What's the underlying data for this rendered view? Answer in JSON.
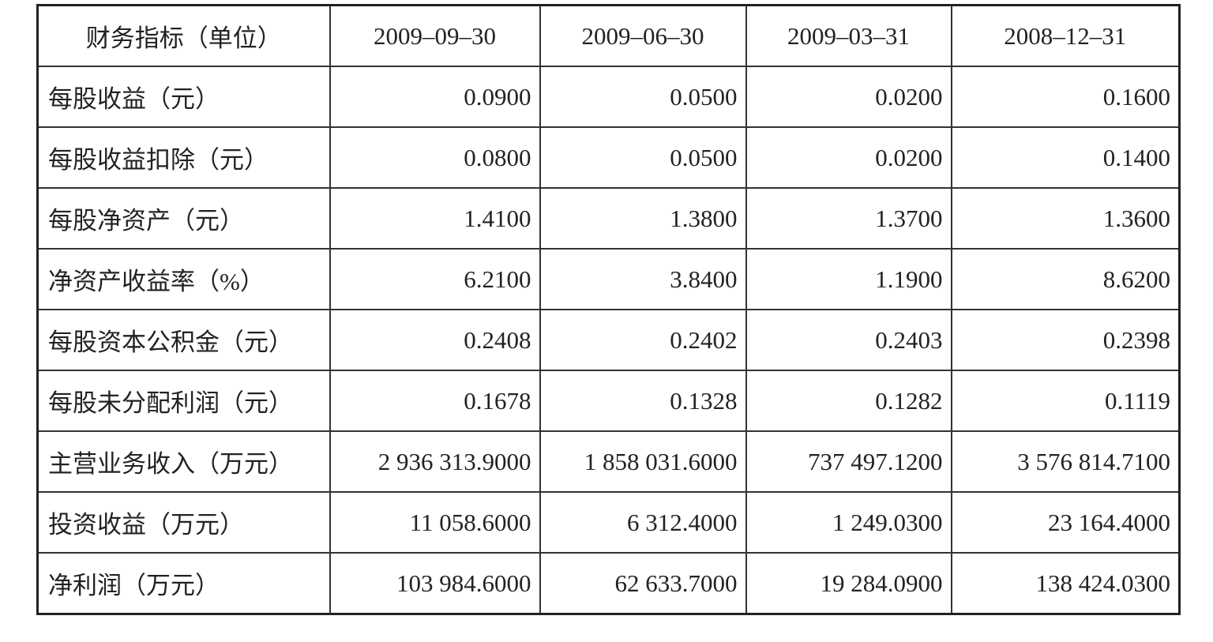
{
  "table": {
    "header": [
      "财务指标（单位）",
      "2009–09–30",
      "2009–06–30",
      "2009–03–31",
      "2008–12–31"
    ],
    "rows": [
      [
        "每股收益（元）",
        "0.0900",
        "0.0500",
        "0.0200",
        "0.1600"
      ],
      [
        "每股收益扣除（元）",
        "0.0800",
        "0.0500",
        "0.0200",
        "0.1400"
      ],
      [
        "每股净资产（元）",
        "1.4100",
        "1.3800",
        "1.3700",
        "1.3600"
      ],
      [
        "净资产收益率（%）",
        "6.2100",
        "3.8400",
        "1.1900",
        "8.6200"
      ],
      [
        "每股资本公积金（元）",
        "0.2408",
        "0.2402",
        "0.2403",
        "0.2398"
      ],
      [
        "每股未分配利润（元）",
        "0.1678",
        "0.1328",
        "0.1282",
        "0.1119"
      ],
      [
        "主营业务收入（万元）",
        "2 936 313.9000",
        "1 858 031.6000",
        "737 497.1200",
        "3 576 814.7100"
      ],
      [
        "投资收益（万元）",
        "11 058.6000",
        "6 312.4000",
        "1 249.0300",
        "23 164.4000"
      ],
      [
        "净利润（万元）",
        "103 984.6000",
        "62 633.7000",
        "19 284.0900",
        "138 424.0300"
      ]
    ]
  }
}
